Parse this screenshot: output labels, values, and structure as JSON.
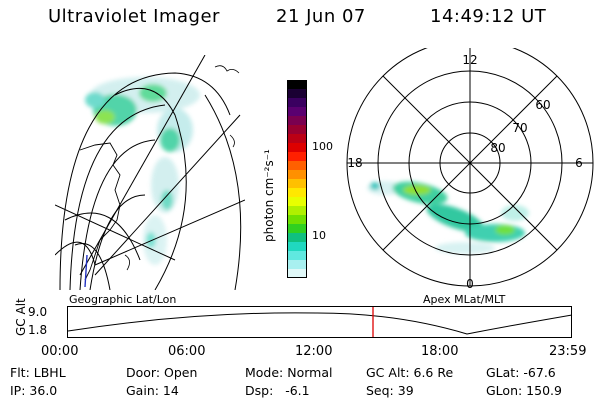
{
  "header": {
    "instrument": "Ultraviolet Imager",
    "date": "21 Jun 07",
    "time": "14:49:12 UT"
  },
  "colorbar": {
    "unit_label": "photon cm⁻²s⁻¹",
    "ticks": [
      "100",
      "10"
    ],
    "colors": [
      "#000000",
      "#1a0033",
      "#3a0060",
      "#5a0070",
      "#7a0050",
      "#990030",
      "#bb0015",
      "#dd0000",
      "#ff2000",
      "#ff6000",
      "#ff9000",
      "#ffc000",
      "#ffe800",
      "#e8ff00",
      "#b0f000",
      "#70e000",
      "#30d020",
      "#10c080",
      "#20d8c0",
      "#60e8e0",
      "#a8f0f0",
      "#e0f8f8"
    ]
  },
  "polar_plot": {
    "lat_labels": [
      "60",
      "70",
      "80"
    ],
    "mlt_labels": [
      "12",
      "6",
      "18",
      "0"
    ]
  },
  "coordinate_labels": {
    "left": "Geographic Lat/Lon",
    "right": "Apex MLat/MLT"
  },
  "altitude_plot": {
    "y_axis_label": "GC Alt",
    "y_ticks": [
      "9.0",
      "1.8"
    ],
    "x_ticks": [
      "00:00",
      "06:00",
      "12:00",
      "18:00",
      "23:59"
    ],
    "marker_color": "#dd0000"
  },
  "status": {
    "filter": "Flt: LBHL",
    "ip": "IP: 36.0",
    "door": "Door: Open",
    "gain": "Gain: 14",
    "mode": "Mode: Normal",
    "dsp": "Dsp:   -6.1",
    "gc_alt": "GC Alt: 6.6 Re",
    "seq": "Seq: 39",
    "glat": "GLat: -67.6",
    "glon": "GLon: 150.9"
  }
}
